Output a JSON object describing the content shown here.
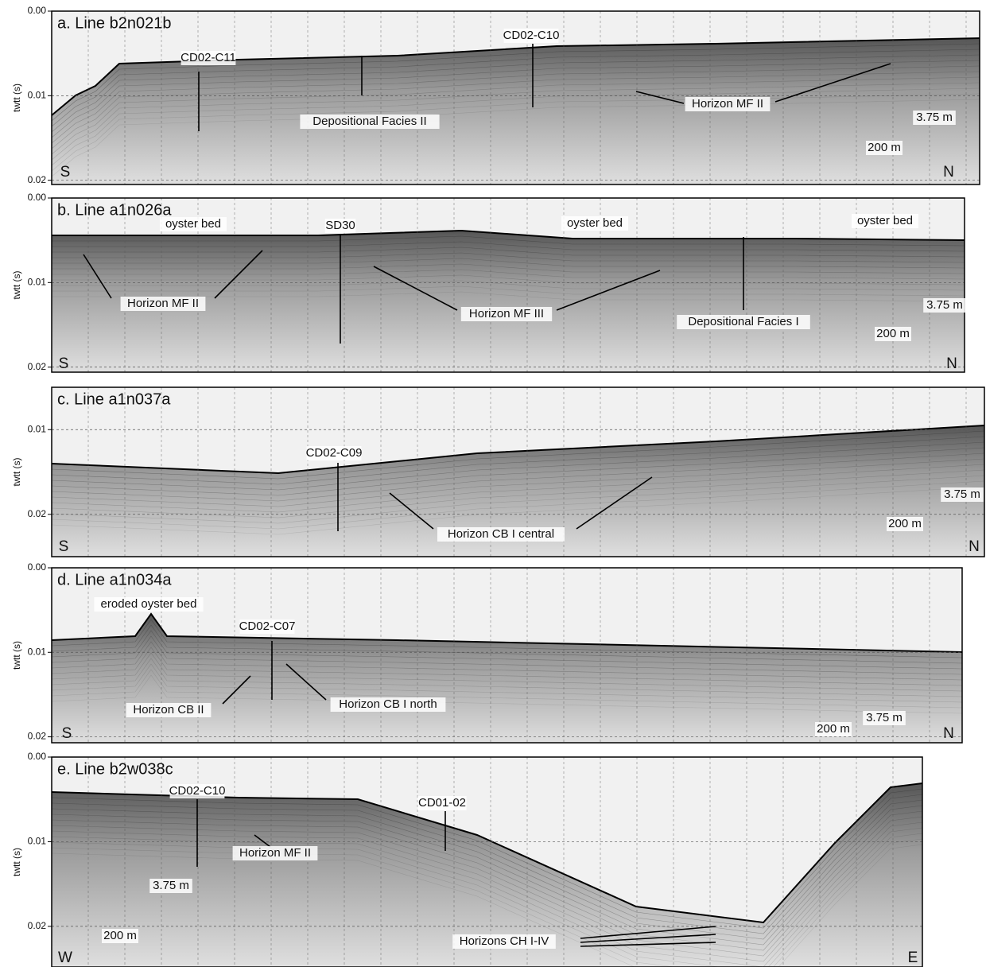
{
  "panels": [
    {
      "title": "a. Line b2n021b",
      "y_label": "twtt (s)",
      "ylim": [
        0,
        0.0205
      ],
      "yticks": [
        {
          "value": 0,
          "label": "0.00"
        },
        0.01,
        0.02
      ],
      "labels": [
        "CD02-C11",
        "CD02-C10",
        "Depositional Facies II",
        "Horizon MF II",
        "3.75 m",
        "200 m",
        "S",
        "N"
      ]
    },
    {
      "title": "b. Line a1n026a",
      "y_label": "twtt (s)",
      "ylim": [
        0,
        0.0206
      ],
      "yticks": [
        {
          "value": 0,
          "label": "0.00"
        },
        0.01,
        0.02
      ],
      "labels": [
        "oyster bed",
        "SD30",
        "oyster bed",
        "oyster bed",
        "Horizon MF II",
        "Horizon MF III",
        "Depositional Facies I",
        "3.75 m",
        "200 m",
        "S",
        "N"
      ]
    },
    {
      "title": "c. Line a1n037a",
      "y_label": "twtt (s)",
      "ylim": [
        0.005,
        0.025
      ],
      "yticks": [
        0.01,
        0.02
      ],
      "labels": [
        "CD02-C09",
        "Horizon CB I central",
        "3.75 m",
        "200 m",
        "S",
        "N"
      ]
    },
    {
      "title": "d. Line a1n034a",
      "y_label": "twtt (s)",
      "ylim": [
        0,
        0.0207
      ],
      "yticks": [
        {
          "value": 0,
          "label": "0.00"
        },
        0.01,
        0.02
      ],
      "labels": [
        "eroded oyster bed",
        "CD02-C07",
        "Horizon CB II",
        "Horizon CB I north",
        "3.75 m",
        "200 m",
        "S",
        "N"
      ]
    },
    {
      "title": "e. Line b2w038c",
      "y_label": "twtt (s)",
      "ylim": [
        0,
        0.0248
      ],
      "yticks": [
        {
          "value": 0,
          "label": "0.00"
        },
        0.01,
        0.02
      ],
      "labels": [
        "CD02-C10",
        "CD01-02",
        "Horizon MF II",
        "3.75 m",
        "200 m",
        "Horizons CH I-IV",
        "W",
        "E"
      ]
    }
  ]
}
